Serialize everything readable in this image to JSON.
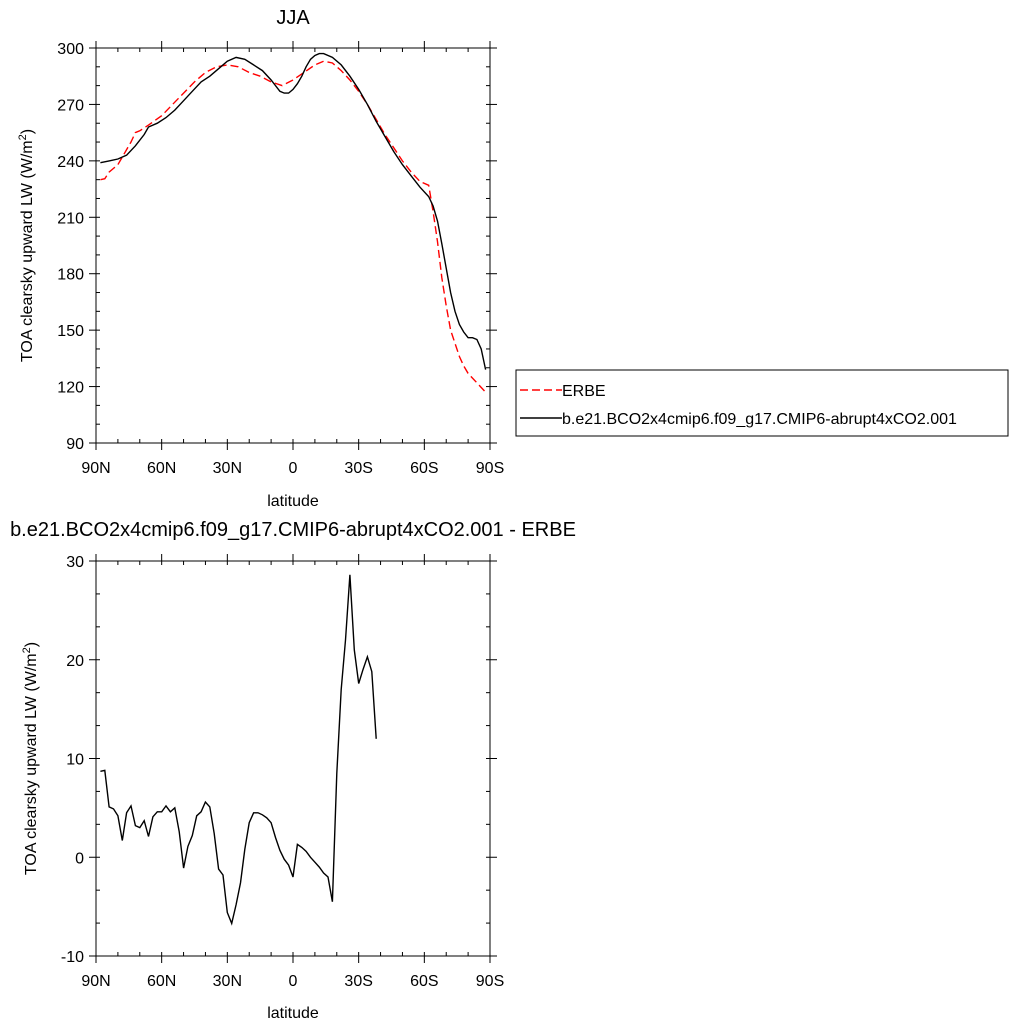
{
  "chart_data": [
    {
      "type": "line",
      "title": "JJA",
      "xlabel": "latitude",
      "ylabel": "TOA clearsky upward LW (W/m",
      "ylabel_sup": "2",
      "ylabel_close": ")",
      "xlim": [
        -90,
        90
      ],
      "ylim": [
        90,
        300
      ],
      "x_ticks": [
        -90,
        -60,
        -30,
        0,
        30,
        60,
        90
      ],
      "x_tick_labels": [
        "90N",
        "60N",
        "30N",
        "0",
        "30S",
        "60S",
        "90S"
      ],
      "y_ticks": [
        90,
        120,
        150,
        180,
        210,
        240,
        270,
        300
      ],
      "y_tick_labels": [
        "90",
        "120",
        "150",
        "180",
        "210",
        "240",
        "270",
        "300"
      ],
      "legend": {
        "placement": "outside-right"
      },
      "series": [
        {
          "name": "ERBE",
          "color": "#ff0000",
          "dash": true,
          "points": [
            [
              -88,
              230
            ],
            [
              -86,
              230.5
            ],
            [
              -84,
              234
            ],
            [
              -82,
              236
            ],
            [
              -80,
              238
            ],
            [
              -78,
              242
            ],
            [
              -76,
              246
            ],
            [
              -74,
              250
            ],
            [
              -72,
              255
            ],
            [
              -70,
              256
            ],
            [
              -66,
              259
            ],
            [
              -60,
              264
            ],
            [
              -55,
              270
            ],
            [
              -50,
              276
            ],
            [
              -45,
              282
            ],
            [
              -40,
              287
            ],
            [
              -35,
              290
            ],
            [
              -30,
              291
            ],
            [
              -25,
              290
            ],
            [
              -20,
              287
            ],
            [
              -15,
              285
            ],
            [
              -10,
              282
            ],
            [
              -5,
              280
            ],
            [
              0,
              283
            ],
            [
              5,
              287
            ],
            [
              10,
              291
            ],
            [
              14,
              293
            ],
            [
              18,
              292
            ],
            [
              22,
              288
            ],
            [
              26,
              283
            ],
            [
              30,
              277
            ],
            [
              34,
              270
            ],
            [
              38,
              262
            ],
            [
              42,
              254
            ],
            [
              46,
              247
            ],
            [
              50,
              240
            ],
            [
              54,
              234
            ],
            [
              58,
              229
            ],
            [
              62,
              227
            ],
            [
              64,
              213
            ],
            [
              66,
              197
            ],
            [
              68,
              178
            ],
            [
              70,
              163
            ],
            [
              72,
              150
            ],
            [
              74,
              143
            ],
            [
              76,
              136
            ],
            [
              78,
              131
            ],
            [
              80,
              127
            ],
            [
              84,
              122
            ],
            [
              88,
              117
            ]
          ]
        },
        {
          "name": "b.e21.BCO2x4cmip6.f09_g17.CMIP6-abrupt4xCO2.001",
          "color": "#000000",
          "dash": false,
          "points": [
            [
              -88,
              239
            ],
            [
              -84,
              240
            ],
            [
              -80,
              241
            ],
            [
              -76,
              243
            ],
            [
              -72,
              248
            ],
            [
              -68,
              254
            ],
            [
              -66,
              258
            ],
            [
              -62,
              260
            ],
            [
              -58,
              263
            ],
            [
              -54,
              267
            ],
            [
              -50,
              272
            ],
            [
              -46,
              277
            ],
            [
              -42,
              282
            ],
            [
              -38,
              285
            ],
            [
              -34,
              289
            ],
            [
              -30,
              293
            ],
            [
              -26,
              295
            ],
            [
              -22,
              294
            ],
            [
              -18,
              291
            ],
            [
              -14,
              288
            ],
            [
              -10,
              283
            ],
            [
              -6,
              277
            ],
            [
              -4,
              276
            ],
            [
              -2,
              276
            ],
            [
              0,
              278
            ],
            [
              2,
              281
            ],
            [
              4,
              285
            ],
            [
              6,
              290
            ],
            [
              8,
              294
            ],
            [
              10,
              296
            ],
            [
              12,
              297
            ],
            [
              14,
              297
            ],
            [
              18,
              295
            ],
            [
              22,
              291
            ],
            [
              26,
              285
            ],
            [
              30,
              278
            ],
            [
              34,
              270
            ],
            [
              38,
              261
            ],
            [
              42,
              253
            ],
            [
              46,
              245
            ],
            [
              50,
              238
            ],
            [
              54,
              232
            ],
            [
              58,
              226
            ],
            [
              62,
              221
            ],
            [
              64,
              216
            ],
            [
              66,
              208
            ],
            [
              68,
              196
            ],
            [
              70,
              183
            ],
            [
              72,
              170
            ],
            [
              74,
              160
            ],
            [
              76,
              153
            ],
            [
              78,
              149
            ],
            [
              80,
              146
            ],
            [
              82,
              146
            ],
            [
              84,
              145
            ],
            [
              86,
              140
            ],
            [
              88,
              129
            ]
          ]
        }
      ]
    },
    {
      "type": "line",
      "title": "b.e21.BCO2x4cmip6.f09_g17.CMIP6-abrupt4xCO2.001 - ERBE",
      "xlabel": "latitude",
      "ylabel": "TOA clearsky upward LW (W/m",
      "ylabel_sup": "2",
      "ylabel_close": ")",
      "xlim": [
        -90,
        90
      ],
      "ylim": [
        -10,
        30
      ],
      "x_ticks": [
        -90,
        -60,
        -30,
        0,
        30,
        60,
        90
      ],
      "x_tick_labels": [
        "90N",
        "60N",
        "30N",
        "0",
        "30S",
        "60S",
        "90S"
      ],
      "y_ticks": [
        -10,
        0,
        10,
        20,
        30
      ],
      "y_tick_labels": [
        "-10",
        "0",
        "10",
        "20",
        "30"
      ],
      "series": [
        {
          "color": "#000000",
          "dash": false,
          "points": [
            [
              -88,
              8.7
            ],
            [
              -86,
              8.8
            ],
            [
              -84,
              5.1
            ],
            [
              -82,
              4.9
            ],
            [
              -80,
              4.2
            ],
            [
              -78,
              1.7
            ],
            [
              -76,
              4.5
            ],
            [
              -74,
              5.2
            ],
            [
              -72,
              3.2
            ],
            [
              -70,
              3
            ],
            [
              -68,
              3.7
            ],
            [
              -66,
              2.1
            ],
            [
              -64,
              4.1
            ],
            [
              -62,
              4.6
            ],
            [
              -60,
              4.6
            ],
            [
              -58,
              5.2
            ],
            [
              -56,
              4.6
            ],
            [
              -54,
              5
            ],
            [
              -52,
              2.6
            ],
            [
              -50,
              -1.1
            ],
            [
              -48,
              1.1
            ],
            [
              -46,
              2.2
            ],
            [
              -44,
              4.2
            ],
            [
              -42,
              4.6
            ],
            [
              -40,
              5.6
            ],
            [
              -38,
              5.1
            ],
            [
              -36,
              2.4
            ],
            [
              -34,
              -1.2
            ],
            [
              -32,
              -1.8
            ],
            [
              -30,
              -5.6
            ],
            [
              -28,
              -6.7
            ],
            [
              -26,
              -4.8
            ],
            [
              -24,
              -2.6
            ],
            [
              -22,
              0.8
            ],
            [
              -20,
              3.5
            ],
            [
              -18,
              4.5
            ],
            [
              -16,
              4.5
            ],
            [
              -14,
              4.3
            ],
            [
              -12,
              4
            ],
            [
              -10,
              3.5
            ],
            [
              -8,
              2
            ],
            [
              -6,
              0.7
            ],
            [
              -4,
              -0.2
            ],
            [
              -2,
              -0.8
            ],
            [
              0,
              -2
            ],
            [
              2,
              1.3
            ],
            [
              4,
              1
            ],
            [
              6,
              0.6
            ],
            [
              8,
              0
            ],
            [
              10,
              -0.5
            ],
            [
              12,
              -1
            ],
            [
              14,
              -1.6
            ],
            [
              16,
              -2
            ],
            [
              18,
              -4.5
            ],
            [
              20,
              8.5
            ],
            [
              22,
              17
            ],
            [
              24,
              22
            ],
            [
              26,
              28.6
            ],
            [
              28,
              21
            ],
            [
              30,
              17.6
            ],
            [
              32,
              19
            ],
            [
              34,
              20.3
            ],
            [
              36,
              18.8
            ],
            [
              38,
              12
            ]
          ]
        }
      ]
    }
  ]
}
